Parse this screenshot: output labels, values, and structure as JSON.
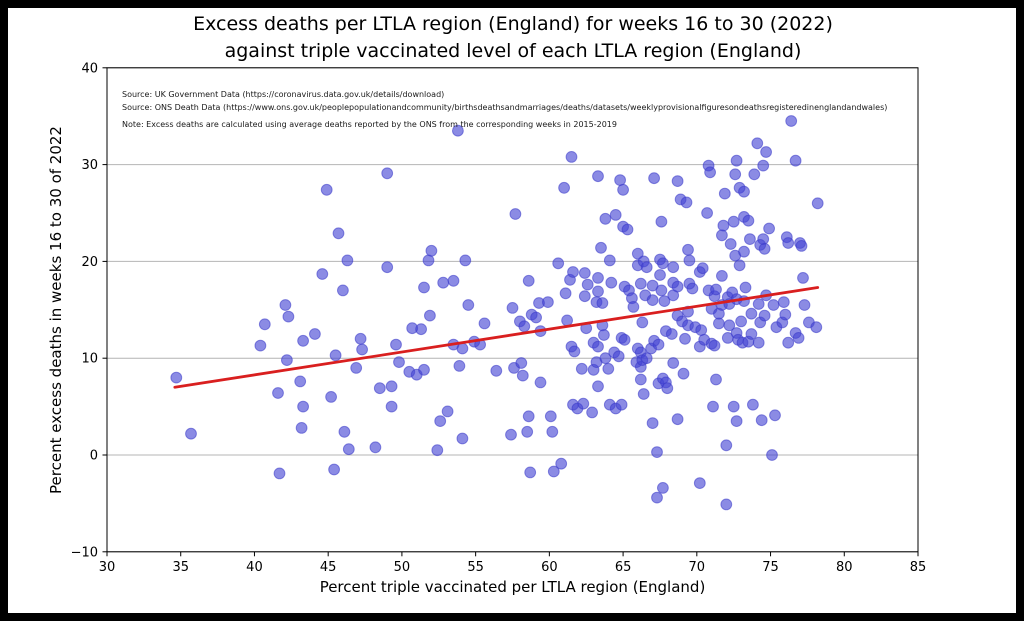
{
  "figure": {
    "title_line1": "Excess deaths per LTLA region (England) for weeks 16 to 30 (2022)",
    "title_line2": "against triple vaccinated level of each LTLA region (England)",
    "annotations": {
      "source1": "Source: UK Government Data (https://coronavirus.data.gov.uk/details/download)",
      "source2": "Source: ONS Death Data (https://www.ons.gov.uk/peoplepopulationandcommunity/birthsdeathsandmarriages/deaths/datasets/weeklyprovisionalfiguresondeathsregisteredinenglandandwales)",
      "note": "Note: Excess deaths are calculated using average deaths reported by the ONS from the corresponding weeks in 2015-2019"
    }
  },
  "chart_data": {
    "type": "scatter",
    "title": "Excess deaths per LTLA region (England) for weeks 16 to 30 (2022) against triple vaccinated level of each LTLA region (England)",
    "xlabel": "Percent triple vaccinated per LTLA region (England)",
    "ylabel": "Percent excess deaths in weeks 16 to 30 of 2022",
    "xlim": [
      30,
      85
    ],
    "ylim": [
      -10,
      40
    ],
    "xticks": [
      30,
      35,
      40,
      45,
      50,
      55,
      60,
      65,
      70,
      75,
      80,
      85
    ],
    "xtick_labels": [
      "30",
      "35",
      "40",
      "45",
      "50",
      "55",
      "60",
      "65",
      "70",
      "75",
      "80",
      "85"
    ],
    "yticks": [
      -10,
      0,
      10,
      20,
      30,
      40
    ],
    "ytick_labels": [
      "−10",
      "0",
      "10",
      "20",
      "30",
      "40"
    ],
    "grid": "horizontal",
    "grid_color": "#b4b4b4",
    "marker_fill": "#4343d4",
    "marker_opacity": 0.62,
    "marker_edge": "#3a3ac8",
    "marker_radius": 5.4,
    "legend": "none",
    "trend_line": {
      "x": [
        34.6,
        78.2
      ],
      "y": [
        7.0,
        17.3
      ],
      "color": "#d91f1f",
      "width": 2.8
    },
    "points": [
      [
        34.7,
        8.0
      ],
      [
        35.7,
        2.2
      ],
      [
        40.4,
        11.3
      ],
      [
        40.7,
        13.5
      ],
      [
        41.6,
        6.4
      ],
      [
        41.7,
        -1.9
      ],
      [
        42.1,
        15.5
      ],
      [
        42.2,
        9.8
      ],
      [
        42.3,
        14.3
      ],
      [
        43.1,
        7.6
      ],
      [
        43.2,
        2.8
      ],
      [
        43.3,
        5.0
      ],
      [
        43.3,
        11.8
      ],
      [
        44.1,
        12.5
      ],
      [
        44.6,
        18.7
      ],
      [
        44.9,
        27.4
      ],
      [
        45.2,
        6.0
      ],
      [
        45.4,
        -1.5
      ],
      [
        45.5,
        10.3
      ],
      [
        45.7,
        22.9
      ],
      [
        46.0,
        17.0
      ],
      [
        46.1,
        2.4
      ],
      [
        46.3,
        20.1
      ],
      [
        46.4,
        0.6
      ],
      [
        46.9,
        9.0
      ],
      [
        47.2,
        12.0
      ],
      [
        47.3,
        10.9
      ],
      [
        48.2,
        0.8
      ],
      [
        48.5,
        6.9
      ],
      [
        49.0,
        19.4
      ],
      [
        49.0,
        29.1
      ],
      [
        49.3,
        5.0
      ],
      [
        49.3,
        7.1
      ],
      [
        49.6,
        11.4
      ],
      [
        49.8,
        9.6
      ],
      [
        50.5,
        8.6
      ],
      [
        50.7,
        13.1
      ],
      [
        51.0,
        8.3
      ],
      [
        51.3,
        13.0
      ],
      [
        51.5,
        8.8
      ],
      [
        51.5,
        17.3
      ],
      [
        51.8,
        20.1
      ],
      [
        51.9,
        14.4
      ],
      [
        52.0,
        21.1
      ],
      [
        52.4,
        0.5
      ],
      [
        52.6,
        3.5
      ],
      [
        52.8,
        17.8
      ],
      [
        53.1,
        4.5
      ],
      [
        53.5,
        11.4
      ],
      [
        53.5,
        18.0
      ],
      [
        53.8,
        33.5
      ],
      [
        53.9,
        9.2
      ],
      [
        54.1,
        1.7
      ],
      [
        54.1,
        11.0
      ],
      [
        54.3,
        20.1
      ],
      [
        54.5,
        15.5
      ],
      [
        54.9,
        11.7
      ],
      [
        55.3,
        11.4
      ],
      [
        55.6,
        13.6
      ],
      [
        56.4,
        8.7
      ],
      [
        57.4,
        2.1
      ],
      [
        57.5,
        15.2
      ],
      [
        57.6,
        9.0
      ],
      [
        57.7,
        24.9
      ],
      [
        58.0,
        13.8
      ],
      [
        58.1,
        9.5
      ],
      [
        58.2,
        8.2
      ],
      [
        58.3,
        13.3
      ],
      [
        58.5,
        2.4
      ],
      [
        58.6,
        4.0
      ],
      [
        58.6,
        18.0
      ],
      [
        58.7,
        -1.8
      ],
      [
        58.8,
        14.5
      ],
      [
        59.1,
        14.2
      ],
      [
        59.3,
        15.7
      ],
      [
        59.4,
        7.5
      ],
      [
        59.4,
        12.8
      ],
      [
        59.9,
        15.8
      ],
      [
        60.1,
        4.0
      ],
      [
        60.2,
        2.4
      ],
      [
        60.3,
        -1.7
      ],
      [
        60.6,
        19.8
      ],
      [
        60.8,
        -0.9
      ],
      [
        61.0,
        27.6
      ],
      [
        61.1,
        16.7
      ],
      [
        61.2,
        13.9
      ],
      [
        61.4,
        18.1
      ],
      [
        61.5,
        11.2
      ],
      [
        61.5,
        30.8
      ],
      [
        61.6,
        5.2
      ],
      [
        61.6,
        18.9
      ],
      [
        61.7,
        10.7
      ],
      [
        61.9,
        4.8
      ],
      [
        62.2,
        8.9
      ],
      [
        62.3,
        5.3
      ],
      [
        62.4,
        16.4
      ],
      [
        62.4,
        18.8
      ],
      [
        62.5,
        13.1
      ],
      [
        62.6,
        17.6
      ],
      [
        62.9,
        4.4
      ],
      [
        63.0,
        8.8
      ],
      [
        63.0,
        11.6
      ],
      [
        63.2,
        9.6
      ],
      [
        63.2,
        15.8
      ],
      [
        63.3,
        7.1
      ],
      [
        63.3,
        11.2
      ],
      [
        63.3,
        16.9
      ],
      [
        63.3,
        18.3
      ],
      [
        63.3,
        28.8
      ],
      [
        63.5,
        21.4
      ],
      [
        63.6,
        13.4
      ],
      [
        63.6,
        15.7
      ],
      [
        63.7,
        12.4
      ],
      [
        63.8,
        10.0
      ],
      [
        63.8,
        24.4
      ],
      [
        64.0,
        8.9
      ],
      [
        64.1,
        5.2
      ],
      [
        64.1,
        20.1
      ],
      [
        64.2,
        17.8
      ],
      [
        64.4,
        10.6
      ],
      [
        64.5,
        4.8
      ],
      [
        64.5,
        24.8
      ],
      [
        64.7,
        10.2
      ],
      [
        64.8,
        28.4
      ],
      [
        64.9,
        5.2
      ],
      [
        64.9,
        12.1
      ],
      [
        65.0,
        23.6
      ],
      [
        65.0,
        27.4
      ],
      [
        65.1,
        11.9
      ],
      [
        65.1,
        17.4
      ],
      [
        65.3,
        23.3
      ],
      [
        65.4,
        17.0
      ],
      [
        65.6,
        16.2
      ],
      [
        65.7,
        15.3
      ],
      [
        65.9,
        9.6
      ],
      [
        66.0,
        11.0
      ],
      [
        66.0,
        19.6
      ],
      [
        66.0,
        20.8
      ],
      [
        66.2,
        7.8
      ],
      [
        66.2,
        9.1
      ],
      [
        66.2,
        10.6
      ],
      [
        66.2,
        17.7
      ],
      [
        66.3,
        9.8
      ],
      [
        66.3,
        13.7
      ],
      [
        66.4,
        6.3
      ],
      [
        66.4,
        20.0
      ],
      [
        66.5,
        16.5
      ],
      [
        66.6,
        10.0
      ],
      [
        66.6,
        19.4
      ],
      [
        66.9,
        11.0
      ],
      [
        67.0,
        3.3
      ],
      [
        67.0,
        16.0
      ],
      [
        67.0,
        17.5
      ],
      [
        67.1,
        11.8
      ],
      [
        67.1,
        28.6
      ],
      [
        67.3,
        -4.4
      ],
      [
        67.3,
        0.3
      ],
      [
        67.4,
        7.4
      ],
      [
        67.4,
        11.4
      ],
      [
        67.5,
        18.6
      ],
      [
        67.5,
        20.2
      ],
      [
        67.6,
        17.0
      ],
      [
        67.6,
        24.1
      ],
      [
        67.7,
        -3.4
      ],
      [
        67.7,
        7.9
      ],
      [
        67.7,
        19.8
      ],
      [
        67.8,
        15.9
      ],
      [
        67.9,
        7.5
      ],
      [
        67.9,
        12.8
      ],
      [
        68.0,
        6.9
      ],
      [
        68.3,
        12.5
      ],
      [
        68.4,
        9.5
      ],
      [
        68.4,
        16.5
      ],
      [
        68.4,
        17.8
      ],
      [
        68.4,
        19.4
      ],
      [
        68.7,
        3.7
      ],
      [
        68.7,
        14.4
      ],
      [
        68.7,
        17.4
      ],
      [
        68.7,
        28.3
      ],
      [
        68.9,
        26.4
      ],
      [
        69.0,
        13.8
      ],
      [
        69.1,
        8.4
      ],
      [
        69.2,
        12.0
      ],
      [
        69.3,
        26.1
      ],
      [
        69.4,
        13.4
      ],
      [
        69.4,
        14.8
      ],
      [
        69.4,
        21.2
      ],
      [
        69.5,
        17.7
      ],
      [
        69.5,
        20.1
      ],
      [
        69.7,
        17.2
      ],
      [
        69.9,
        13.2
      ],
      [
        70.2,
        -2.9
      ],
      [
        70.2,
        11.2
      ],
      [
        70.2,
        18.9
      ],
      [
        70.3,
        12.9
      ],
      [
        70.4,
        19.3
      ],
      [
        70.5,
        11.9
      ],
      [
        70.7,
        25.0
      ],
      [
        70.8,
        17.0
      ],
      [
        70.8,
        29.9
      ],
      [
        70.9,
        29.2
      ],
      [
        71.0,
        11.5
      ],
      [
        71.0,
        15.1
      ],
      [
        71.1,
        5.0
      ],
      [
        71.2,
        11.3
      ],
      [
        71.2,
        16.4
      ],
      [
        71.3,
        7.8
      ],
      [
        71.3,
        17.1
      ],
      [
        71.5,
        13.6
      ],
      [
        71.5,
        14.6
      ],
      [
        71.7,
        15.5
      ],
      [
        71.7,
        18.5
      ],
      [
        71.7,
        22.7
      ],
      [
        71.8,
        23.7
      ],
      [
        71.9,
        27.0
      ],
      [
        72.0,
        -5.1
      ],
      [
        72.0,
        1.0
      ],
      [
        72.1,
        12.1
      ],
      [
        72.1,
        16.3
      ],
      [
        72.2,
        13.4
      ],
      [
        72.2,
        15.6
      ],
      [
        72.3,
        21.8
      ],
      [
        72.4,
        16.8
      ],
      [
        72.5,
        5.0
      ],
      [
        72.5,
        24.1
      ],
      [
        72.6,
        20.6
      ],
      [
        72.6,
        29.0
      ],
      [
        72.7,
        3.5
      ],
      [
        72.7,
        12.6
      ],
      [
        72.7,
        16.1
      ],
      [
        72.7,
        30.4
      ],
      [
        72.8,
        11.9
      ],
      [
        72.9,
        19.6
      ],
      [
        72.9,
        27.6
      ],
      [
        73.0,
        13.8
      ],
      [
        73.1,
        11.6
      ],
      [
        73.2,
        15.9
      ],
      [
        73.2,
        21.0
      ],
      [
        73.2,
        24.6
      ],
      [
        73.2,
        27.2
      ],
      [
        73.3,
        17.3
      ],
      [
        73.5,
        11.7
      ],
      [
        73.5,
        24.2
      ],
      [
        73.6,
        22.3
      ],
      [
        73.7,
        12.5
      ],
      [
        73.7,
        14.6
      ],
      [
        73.8,
        5.2
      ],
      [
        73.9,
        29.0
      ],
      [
        74.1,
        32.2
      ],
      [
        74.2,
        11.6
      ],
      [
        74.2,
        15.6
      ],
      [
        74.3,
        13.7
      ],
      [
        74.3,
        21.7
      ],
      [
        74.4,
        3.6
      ],
      [
        74.5,
        22.3
      ],
      [
        74.5,
        29.9
      ],
      [
        74.6,
        14.4
      ],
      [
        74.6,
        21.3
      ],
      [
        74.7,
        16.5
      ],
      [
        74.7,
        31.3
      ],
      [
        74.9,
        23.4
      ],
      [
        75.1,
        0.0
      ],
      [
        75.2,
        15.5
      ],
      [
        75.3,
        4.1
      ],
      [
        75.4,
        13.2
      ],
      [
        75.8,
        13.7
      ],
      [
        75.9,
        15.8
      ],
      [
        76.0,
        14.5
      ],
      [
        76.1,
        22.5
      ],
      [
        76.2,
        11.6
      ],
      [
        76.2,
        21.9
      ],
      [
        76.4,
        34.5
      ],
      [
        76.7,
        12.6
      ],
      [
        76.7,
        30.4
      ],
      [
        76.9,
        12.1
      ],
      [
        77.0,
        21.9
      ],
      [
        77.1,
        21.6
      ],
      [
        77.2,
        18.3
      ],
      [
        77.3,
        15.5
      ],
      [
        77.6,
        13.7
      ],
      [
        78.1,
        13.2
      ],
      [
        78.2,
        26.0
      ]
    ]
  }
}
